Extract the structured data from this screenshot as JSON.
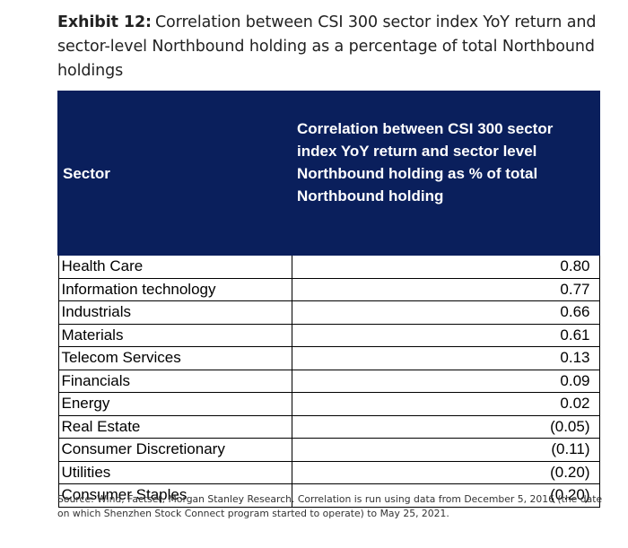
{
  "exhibit": {
    "label": "Exhibit 12:",
    "title": "Correlation between CSI 300 sector index YoY return and sector-level Northbound holding as a percentage of total Northbound holdings"
  },
  "table": {
    "headers": {
      "sector": "Sector",
      "correlation": "Correlation between CSI 300 sector index YoY return and sector level Northbound holding as % of total Northbound holding"
    },
    "rows": [
      {
        "sector": "Health Care",
        "value": "0.80"
      },
      {
        "sector": "Information technology",
        "value": "0.77"
      },
      {
        "sector": "Industrials",
        "value": "0.66"
      },
      {
        "sector": "Materials",
        "value": "0.61"
      },
      {
        "sector": "Telecom Services",
        "value": "0.13"
      },
      {
        "sector": "Financials",
        "value": "0.09"
      },
      {
        "sector": "Energy",
        "value": "0.02"
      },
      {
        "sector": "Real Estate",
        "value": "(0.05)"
      },
      {
        "sector": "Consumer Discretionary",
        "value": "(0.11)"
      },
      {
        "sector": "Utilities",
        "value": "(0.20)"
      },
      {
        "sector": "Consumer Staples",
        "value": "(0.20)"
      }
    ]
  },
  "source": "Source: Wind, Factset, Morgan Stanley Research. Correlation is run using data from December 5, 2016 (the date on which Shenzhen Stock Connect program started to operate) to May 25, 2021.",
  "colors": {
    "header_background": "#0a1f5c",
    "header_text": "#ffffff"
  }
}
